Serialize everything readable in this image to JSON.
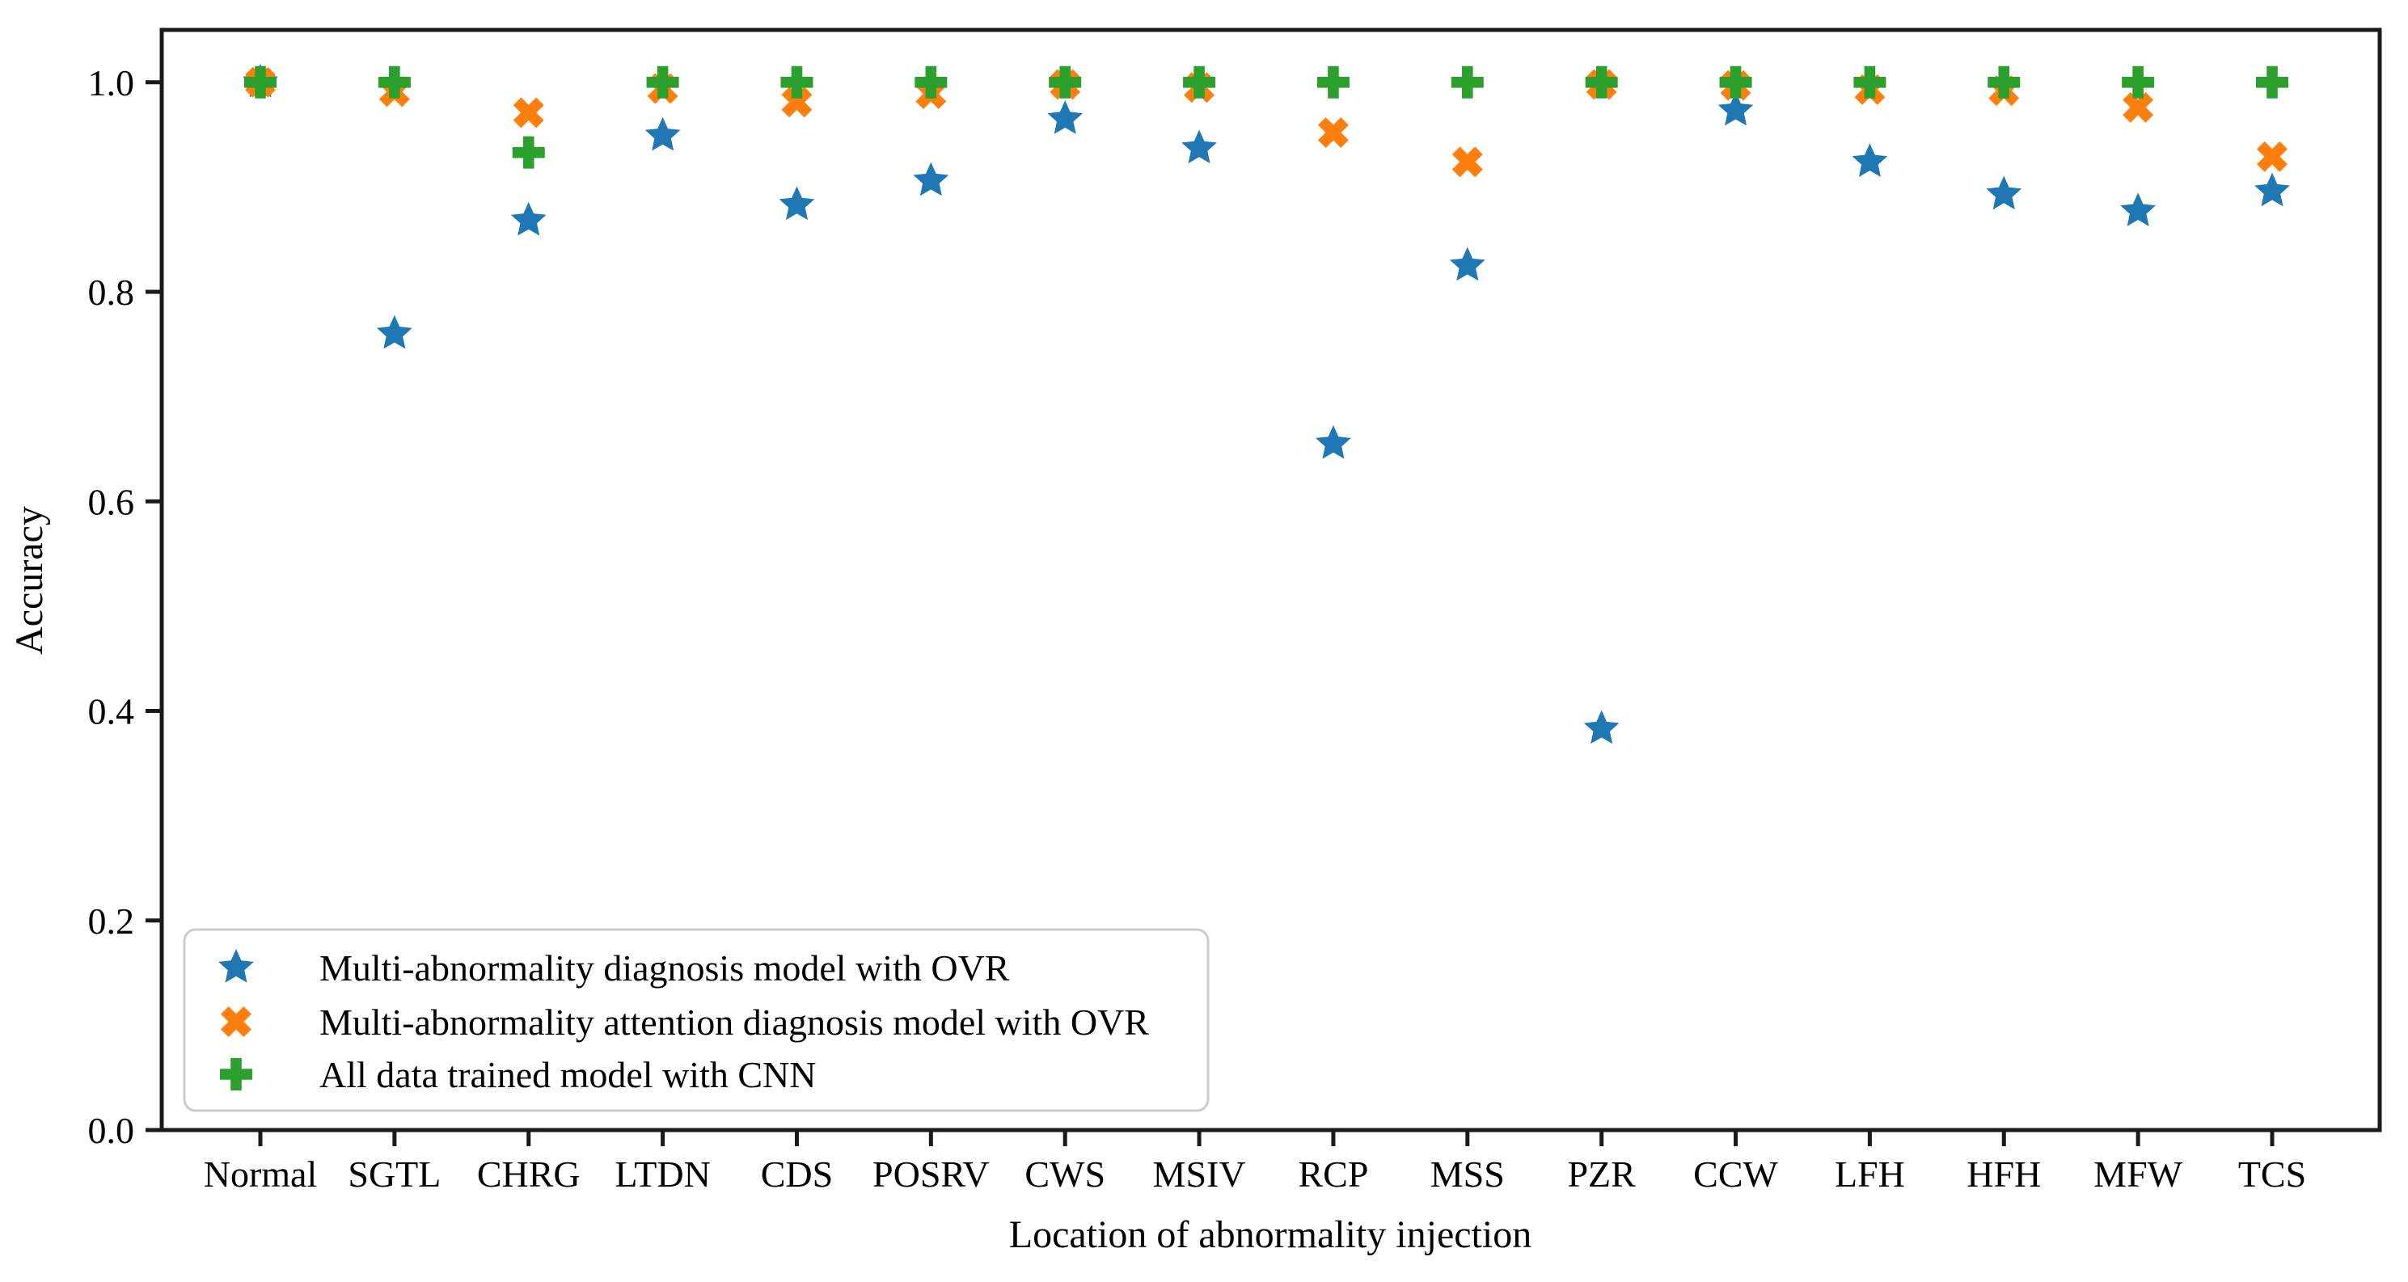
{
  "figure": {
    "background": "#ffffff",
    "axis_color": "#1a1a1a"
  },
  "chart_data": {
    "type": "scatter",
    "title": "",
    "xlabel": "Location of abnormality injection",
    "ylabel": "Accuracy",
    "categories": [
      "Normal",
      "SGTL",
      "CHRG",
      "LTDN",
      "CDS",
      "POSRV",
      "CWS",
      "MSIV",
      "RCP",
      "MSS",
      "PZR",
      "CCW",
      "LFH",
      "HFH",
      "MFW",
      "TCS"
    ],
    "ylim": [
      0.0,
      1.05
    ],
    "yticks": [
      0.0,
      0.2,
      0.4,
      0.6,
      0.8,
      1.0
    ],
    "ytick_format_decimals": 1,
    "grid": false,
    "legend_position": "lower left",
    "series": [
      {
        "name": "Multi-abnormality diagnosis model with OVR",
        "marker": "star",
        "color": "#1f77b4",
        "values": [
          1.0,
          0.76,
          0.868,
          0.949,
          0.883,
          0.906,
          0.965,
          0.937,
          0.655,
          0.825,
          0.383,
          0.973,
          0.924,
          0.893,
          0.877,
          0.896
        ]
      },
      {
        "name": "Multi-abnormality attention diagnosis model with OVR",
        "marker": "x-filled",
        "color": "#ff7f0e",
        "values": [
          1.0,
          0.991,
          0.971,
          0.994,
          0.981,
          0.989,
          0.998,
          0.995,
          0.952,
          0.924,
          0.998,
          0.997,
          0.993,
          0.992,
          0.976,
          0.929
        ]
      },
      {
        "name": "All data trained model with CNN",
        "marker": "plus-filled",
        "color": "#2ca02c",
        "values": [
          1.0,
          1.0,
          0.933,
          1.0,
          1.0,
          1.0,
          1.0,
          1.0,
          1.0,
          1.0,
          1.0,
          1.0,
          1.0,
          1.0,
          1.0,
          1.0
        ]
      }
    ]
  }
}
